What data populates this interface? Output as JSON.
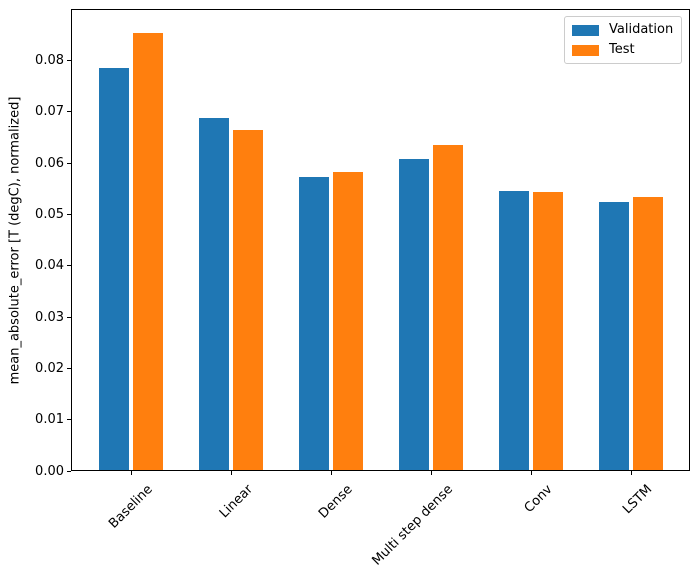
{
  "chart_data": {
    "type": "bar",
    "title": "",
    "xlabel": "",
    "ylabel": "mean_absolute_error [T (degC), normalized]",
    "categories": [
      "Baseline",
      "Linear",
      "Dense",
      "Multi step dense",
      "Conv",
      "LSTM"
    ],
    "series": [
      {
        "name": "Validation",
        "color": "#1f77b4",
        "values": [
          0.0785,
          0.0688,
          0.0573,
          0.0607,
          0.0546,
          0.0524
        ]
      },
      {
        "name": "Test",
        "color": "#ff7f0e",
        "values": [
          0.0854,
          0.0664,
          0.0583,
          0.0635,
          0.0544,
          0.0534
        ]
      }
    ],
    "ylim": [
      0,
      0.09
    ],
    "ytick_step": 0.01,
    "ytick_labels": [
      "0.00",
      "0.01",
      "0.02",
      "0.03",
      "0.04",
      "0.05",
      "0.06",
      "0.07",
      "0.08"
    ],
    "xtick_rotation": 45,
    "grid": false,
    "legend_position": "upper right"
  }
}
